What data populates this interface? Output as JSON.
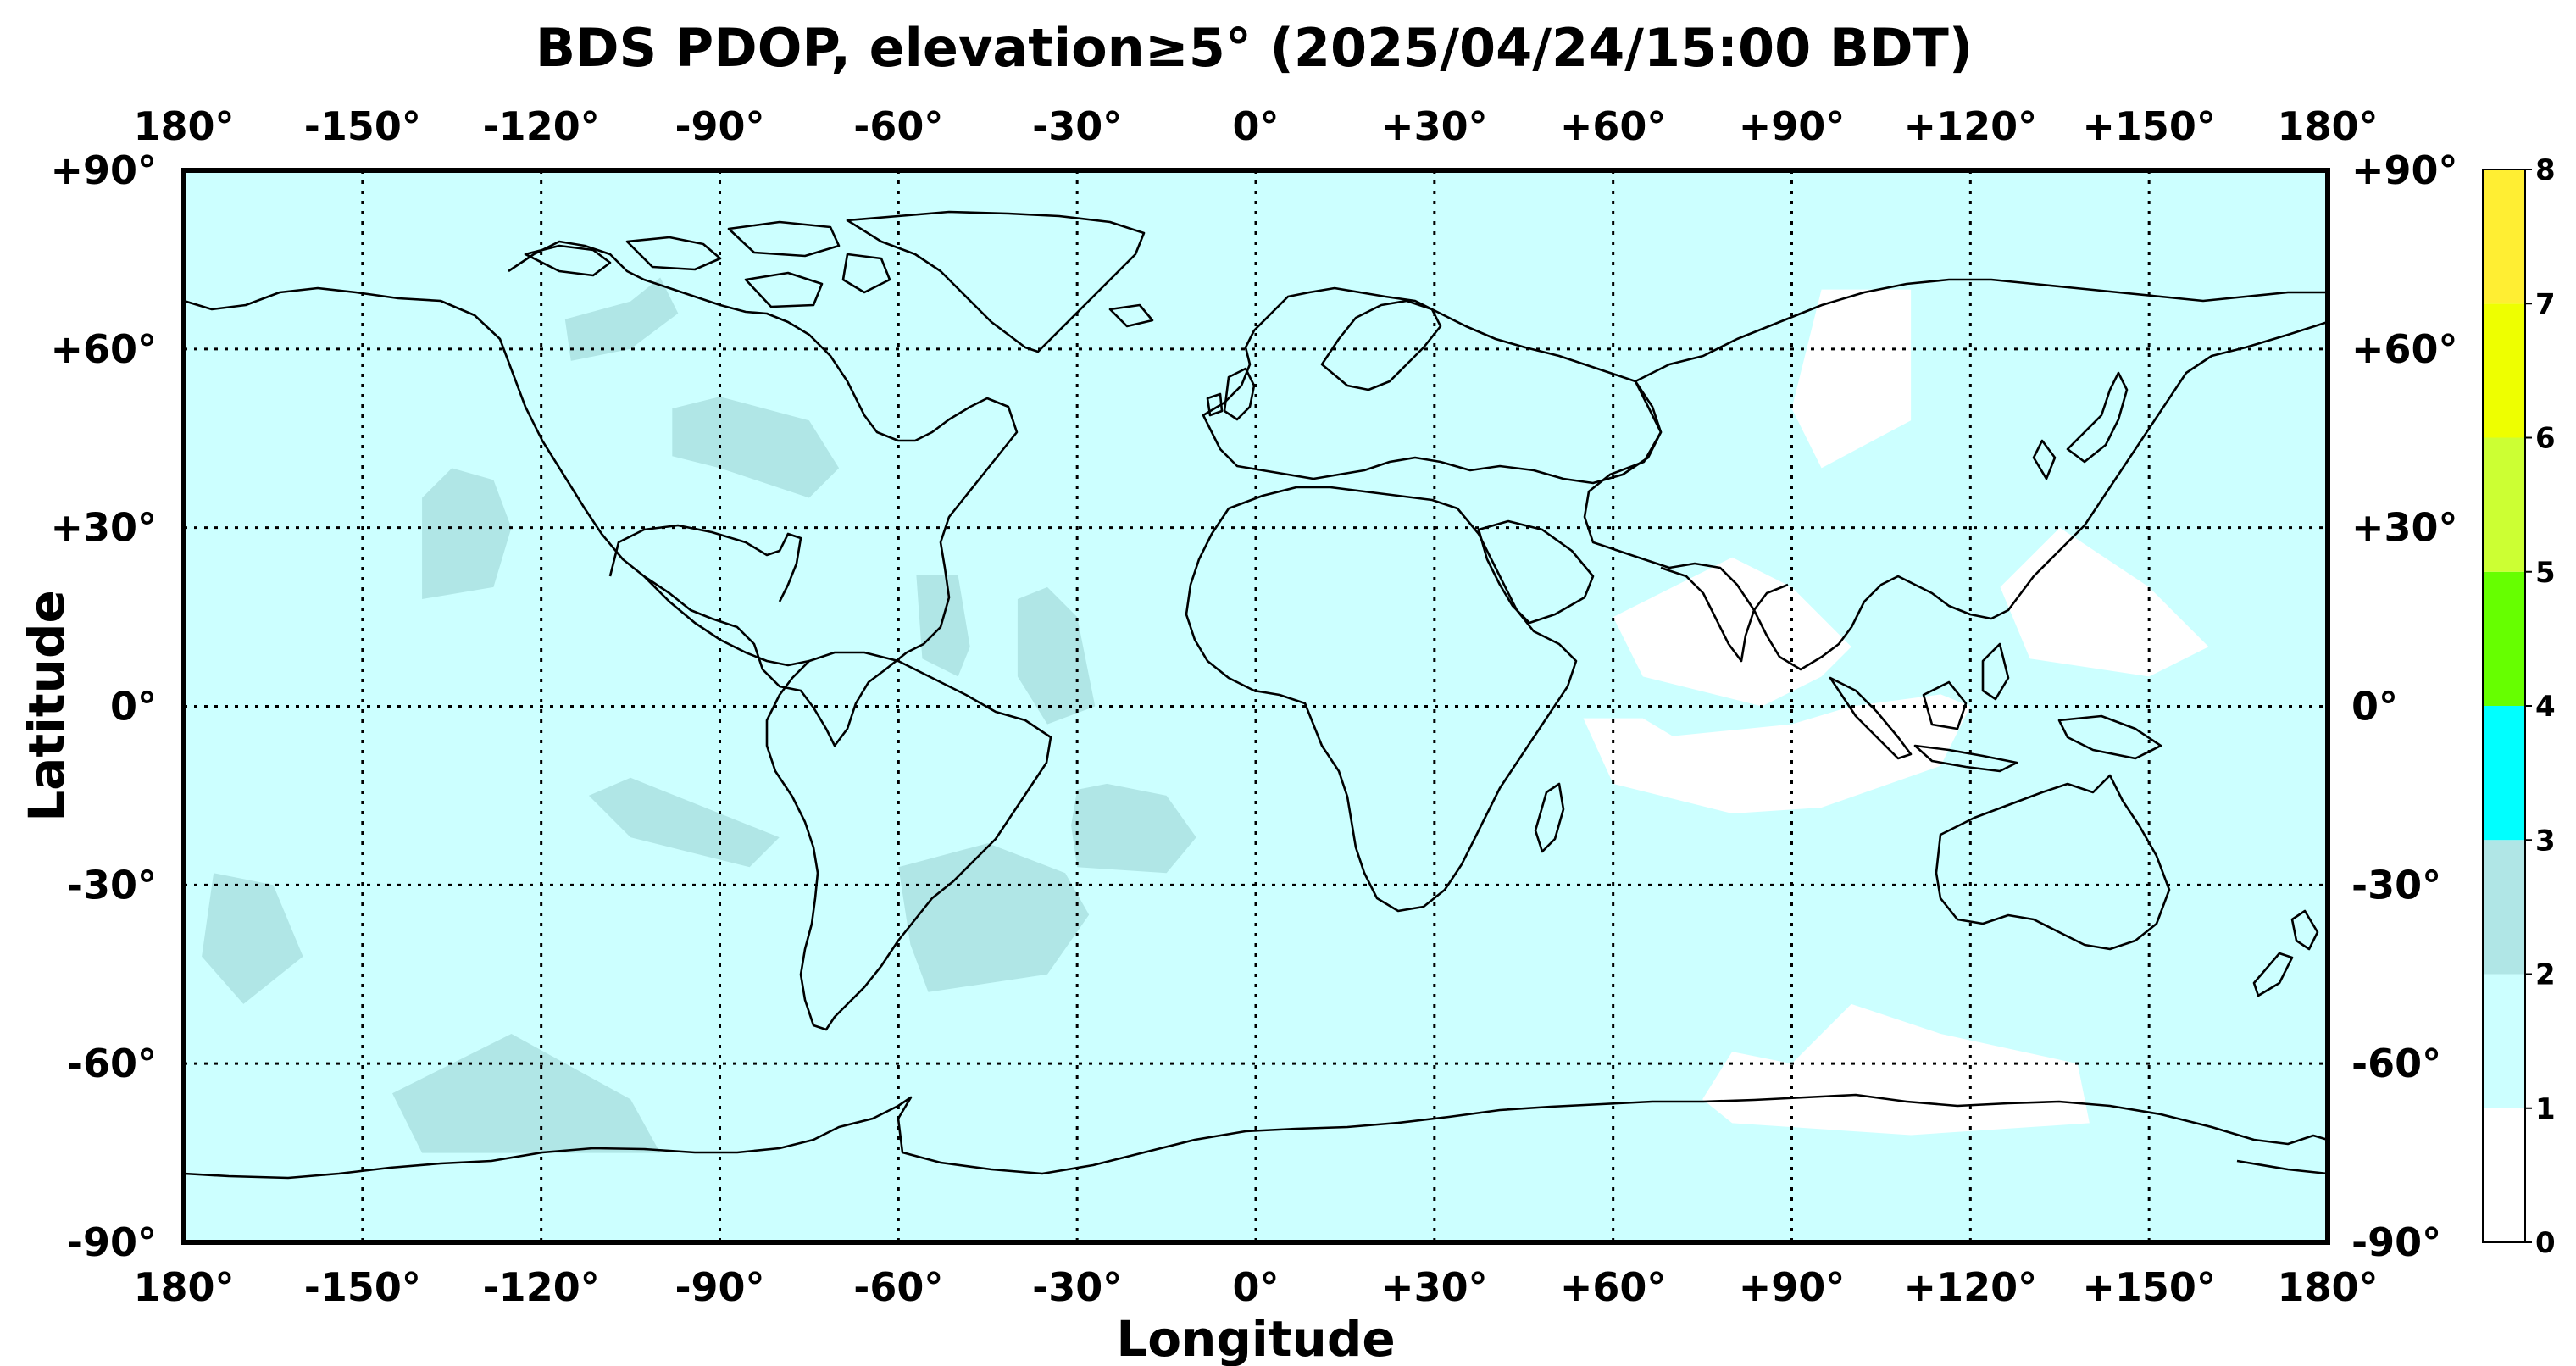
{
  "map": {
    "title": "BDS PDOP, elevation≥5° (2025/04/24/15:00 BDT)",
    "x_axis_label": "Longitude",
    "y_axis_label": "Latitude",
    "lon_tick_labels": [
      "180°",
      "-150°",
      "-120°",
      "-90°",
      "-60°",
      "-30°",
      "0°",
      "+30°",
      "+60°",
      "+90°",
      "+120°",
      "+150°",
      "180°"
    ],
    "lat_tick_labels": [
      "+90°",
      "+60°",
      "+30°",
      "0°",
      "-30°",
      "-60°",
      "-90°"
    ],
    "lon_ticks": [
      -180,
      -150,
      -120,
      -90,
      -60,
      -30,
      0,
      30,
      60,
      90,
      120,
      150,
      180
    ],
    "lat_ticks": [
      90,
      60,
      30,
      0,
      -30,
      -60,
      -90
    ],
    "extent": {
      "lon": [
        -180,
        180
      ],
      "lat": [
        -90,
        90
      ]
    },
    "grid": "dotted, every 30°",
    "background_level_color": "#ccffff"
  },
  "colorbar": {
    "tick_labels": [
      "0",
      "1",
      "2",
      "3",
      "4",
      "5",
      "6",
      "7",
      "8"
    ],
    "levels": [
      {
        "range": [
          0,
          1
        ],
        "color": "#ffffff"
      },
      {
        "range": [
          1,
          2
        ],
        "color": "#ccffff"
      },
      {
        "range": [
          2,
          3
        ],
        "color": "#b0e6e6"
      },
      {
        "range": [
          3,
          4
        ],
        "color": "#00ffff"
      },
      {
        "range": [
          4,
          5
        ],
        "color": "#66ff00"
      },
      {
        "range": [
          5,
          6
        ],
        "color": "#ccff33"
      },
      {
        "range": [
          6,
          7
        ],
        "color": "#eeff00"
      },
      {
        "range": [
          7,
          8
        ],
        "color": "#ffee33"
      }
    ]
  },
  "chart_data": {
    "type": "heatmap",
    "title": "BDS PDOP, elevation≥5° (2025/04/24/15:00 BDT)",
    "xlabel": "Longitude",
    "ylabel": "Latitude",
    "xlim": [
      -180,
      180
    ],
    "ylim": [
      -90,
      90
    ],
    "colorbar_range": [
      0,
      8
    ],
    "dominant_level": [
      1,
      2
    ],
    "regions": [
      {
        "level": [
          2,
          3
        ],
        "polygon": [
          [
            -105,
            68
          ],
          [
            -100,
            72
          ],
          [
            -97,
            66
          ],
          [
            -105,
            60
          ],
          [
            -115,
            58
          ],
          [
            -116,
            65
          ]
        ]
      },
      {
        "level": [
          2,
          3
        ],
        "polygon": [
          [
            -140,
            35
          ],
          [
            -135,
            40
          ],
          [
            -128,
            38
          ],
          [
            -125,
            30
          ],
          [
            -128,
            20
          ],
          [
            -140,
            18
          ]
        ]
      },
      {
        "level": [
          2,
          3
        ],
        "polygon": [
          [
            -98,
            50
          ],
          [
            -90,
            52
          ],
          [
            -75,
            48
          ],
          [
            -70,
            40
          ],
          [
            -75,
            35
          ],
          [
            -90,
            40
          ],
          [
            -98,
            42
          ]
        ]
      },
      {
        "level": [
          2,
          3
        ],
        "polygon": [
          [
            -57,
            22
          ],
          [
            -50,
            22
          ],
          [
            -48,
            10
          ],
          [
            -50,
            5
          ],
          [
            -56,
            8
          ]
        ]
      },
      {
        "level": [
          2,
          3
        ],
        "polygon": [
          [
            -40,
            18
          ],
          [
            -35,
            20
          ],
          [
            -30,
            15
          ],
          [
            -27,
            0
          ],
          [
            -35,
            -3
          ],
          [
            -40,
            5
          ]
        ]
      },
      {
        "level": [
          2,
          3
        ],
        "polygon": [
          [
            -30,
            -14
          ],
          [
            -25,
            -13
          ],
          [
            -15,
            -15
          ],
          [
            -10,
            -22
          ],
          [
            -15,
            -28
          ],
          [
            -30,
            -27
          ],
          [
            -31,
            -20
          ]
        ]
      },
      {
        "level": [
          2,
          3
        ],
        "polygon": [
          [
            -105,
            -12
          ],
          [
            -90,
            -18
          ],
          [
            -80,
            -22
          ],
          [
            -85,
            -27
          ],
          [
            -105,
            -22
          ],
          [
            -112,
            -15
          ]
        ]
      },
      {
        "level": [
          2,
          3
        ],
        "polygon": [
          [
            -60,
            -27
          ],
          [
            -45,
            -23
          ],
          [
            -32,
            -28
          ],
          [
            -28,
            -35
          ],
          [
            -35,
            -45
          ],
          [
            -55,
            -48
          ],
          [
            -58,
            -40
          ]
        ]
      },
      {
        "level": [
          2,
          3
        ],
        "polygon": [
          [
            -175,
            -28
          ],
          [
            -165,
            -30
          ],
          [
            -160,
            -42
          ],
          [
            -170,
            -50
          ],
          [
            -177,
            -42
          ]
        ]
      },
      {
        "level": [
          2,
          3
        ],
        "polygon": [
          [
            -145,
            -65
          ],
          [
            -125,
            -55
          ],
          [
            -105,
            -66
          ],
          [
            -100,
            -75
          ],
          [
            -140,
            -75
          ]
        ]
      },
      {
        "level": [
          0,
          1
        ],
        "polygon": [
          [
            55,
            -2
          ],
          [
            65,
            -2
          ],
          [
            70,
            -5
          ],
          [
            90,
            -3
          ],
          [
            100,
            0
          ],
          [
            115,
            2
          ],
          [
            120,
            0
          ],
          [
            115,
            -10
          ],
          [
            95,
            -17
          ],
          [
            80,
            -18
          ],
          [
            60,
            -13
          ]
        ]
      },
      {
        "level": [
          0,
          1
        ],
        "polygon": [
          [
            60,
            15
          ],
          [
            70,
            20
          ],
          [
            80,
            25
          ],
          [
            90,
            20
          ],
          [
            100,
            10
          ],
          [
            95,
            5
          ],
          [
            85,
            0
          ],
          [
            65,
            5
          ]
        ]
      },
      {
        "level": [
          0,
          1
        ],
        "polygon": [
          [
            95,
            70
          ],
          [
            110,
            70
          ],
          [
            110,
            48
          ],
          [
            95,
            40
          ],
          [
            90,
            50
          ]
        ]
      },
      {
        "level": [
          0,
          1
        ],
        "polygon": [
          [
            125,
            20
          ],
          [
            135,
            30
          ],
          [
            150,
            20
          ],
          [
            160,
            10
          ],
          [
            150,
            5
          ],
          [
            130,
            8
          ]
        ]
      },
      {
        "level": [
          0,
          1
        ],
        "polygon": [
          [
            100,
            -50
          ],
          [
            90,
            -60
          ],
          [
            80,
            -58
          ],
          [
            75,
            -66
          ],
          [
            80,
            -70
          ],
          [
            110,
            -72
          ],
          [
            140,
            -70
          ],
          [
            138,
            -60
          ],
          [
            115,
            -55
          ]
        ]
      }
    ]
  }
}
